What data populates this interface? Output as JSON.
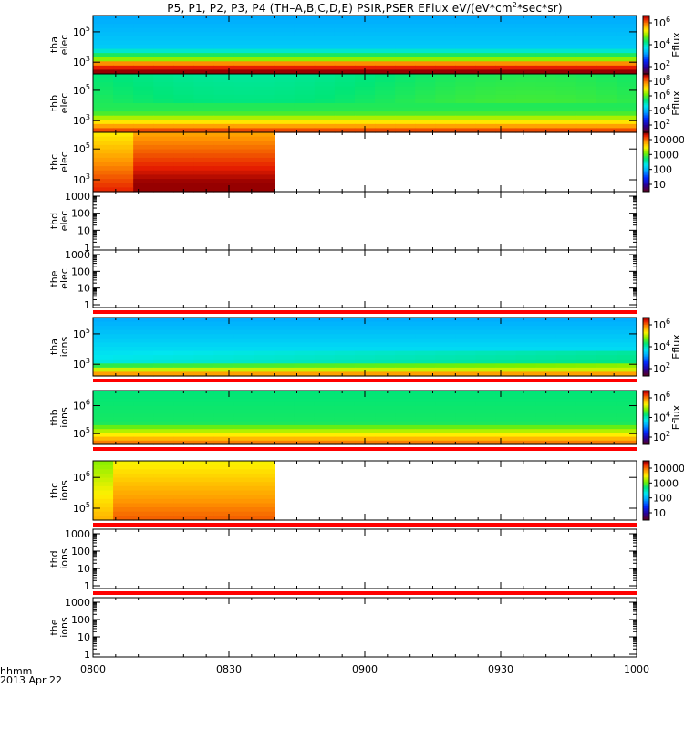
{
  "figure": {
    "title_main": "P5, P1, P2, P3, P4 (TH–A,B,C,D,E) PSIR,PSER EFlux eV/(eV*cm",
    "title_sup": "2",
    "title_tail": "*sec*sr)",
    "time_format_label": "hhmm",
    "date_label": "2013 Apr 22",
    "colors": {
      "gap_line": "#ff0000",
      "frame": "#000000"
    }
  },
  "chart_data": [
    {
      "type": "heatmap",
      "name": "tha-elec",
      "ylabel": [
        "tha",
        "elec"
      ],
      "y_scale": "log",
      "y_tick_labels": [
        "10^5",
        "10^3"
      ],
      "x_tick_labels": [
        "0800",
        "0830",
        "0900",
        "0930",
        "1000"
      ],
      "x_range": [
        "0800",
        "1000"
      ],
      "data_coverage": [
        "0800",
        "1000"
      ],
      "colorbar": {
        "label": "Eflux",
        "tick_labels": [
          "10^6",
          "10^4",
          "10^2"
        ]
      },
      "gap_marker_below": false
    },
    {
      "type": "heatmap",
      "name": "thb-elec",
      "ylabel": [
        "thb",
        "elec"
      ],
      "y_scale": "log",
      "y_tick_labels": [
        "10^5",
        "10^3"
      ],
      "x_range": [
        "0800",
        "1000"
      ],
      "data_coverage": [
        "0800",
        "1000"
      ],
      "colorbar": {
        "label": "Eflux",
        "tick_labels": [
          "10^8",
          "10^6",
          "10^4",
          "10^2"
        ]
      },
      "gap_marker_below": false
    },
    {
      "type": "heatmap",
      "name": "thc-elec",
      "ylabel": [
        "thc",
        "elec"
      ],
      "y_scale": "log",
      "y_tick_labels": [
        "10^5",
        "10^3"
      ],
      "x_range": [
        "0800",
        "1000"
      ],
      "data_coverage": [
        "0800",
        "0840"
      ],
      "colorbar": {
        "label": "",
        "tick_labels": [
          "10000",
          "1000",
          "100",
          "10"
        ]
      },
      "gap_marker_below": false
    },
    {
      "type": "heatmap",
      "name": "thd-elec",
      "ylabel": [
        "thd",
        "elec"
      ],
      "y_scale": "log",
      "y_tick_labels": [
        "1000",
        "100",
        "10",
        "1"
      ],
      "x_range": [
        "0800",
        "1000"
      ],
      "data_coverage": [],
      "colorbar": null,
      "gap_marker_below": false
    },
    {
      "type": "heatmap",
      "name": "the-elec",
      "ylabel": [
        "the",
        "elec"
      ],
      "y_scale": "log",
      "y_tick_labels": [
        "1000",
        "100",
        "10",
        "1"
      ],
      "x_range": [
        "0800",
        "1000"
      ],
      "data_coverage": [],
      "colorbar": null,
      "gap_marker_below": true
    },
    {
      "type": "heatmap",
      "name": "tha-ions",
      "ylabel": [
        "tha",
        "ions"
      ],
      "y_scale": "log",
      "y_tick_labels": [
        "10^5",
        "10^3"
      ],
      "x_range": [
        "0800",
        "1000"
      ],
      "data_coverage": [
        "0800",
        "1000"
      ],
      "colorbar": {
        "label": "Eflux",
        "tick_labels": [
          "10^6",
          "10^4",
          "10^2"
        ]
      },
      "gap_marker_below": true
    },
    {
      "type": "heatmap",
      "name": "thb-ions",
      "ylabel": [
        "thb",
        "ions"
      ],
      "y_scale": "log",
      "y_tick_labels": [
        "10^6",
        "10^5"
      ],
      "x_range": [
        "0800",
        "1000"
      ],
      "data_coverage": [
        "0800",
        "1000"
      ],
      "colorbar": {
        "label": "Eflux",
        "tick_labels": [
          "10^6",
          "10^4",
          "10^2"
        ]
      },
      "gap_marker_below": true
    },
    {
      "type": "heatmap",
      "name": "thc-ions",
      "ylabel": [
        "thc",
        "ions"
      ],
      "y_scale": "log",
      "y_tick_labels": [
        "10^6",
        "10^5"
      ],
      "x_range": [
        "0800",
        "1000"
      ],
      "data_coverage": [
        "0800",
        "0840"
      ],
      "colorbar": {
        "label": "",
        "tick_labels": [
          "10000",
          "1000",
          "100",
          "10"
        ]
      },
      "gap_marker_below": true
    },
    {
      "type": "heatmap",
      "name": "thd-ions",
      "ylabel": [
        "thd",
        "ions"
      ],
      "y_scale": "log",
      "y_tick_labels": [
        "1000",
        "100",
        "10",
        "1"
      ],
      "x_range": [
        "0800",
        "1000"
      ],
      "data_coverage": [],
      "colorbar": null,
      "gap_marker_below": true
    },
    {
      "type": "heatmap",
      "name": "the-ions",
      "ylabel": [
        "the",
        "ions"
      ],
      "y_scale": "log",
      "y_tick_labels": [
        "1000",
        "100",
        "10",
        "1"
      ],
      "x_tick_labels": [
        "0800",
        "0830",
        "0900",
        "0930",
        "1000"
      ],
      "x_range": [
        "0800",
        "1000"
      ],
      "data_coverage": [],
      "colorbar": null,
      "gap_marker_below": false
    }
  ]
}
